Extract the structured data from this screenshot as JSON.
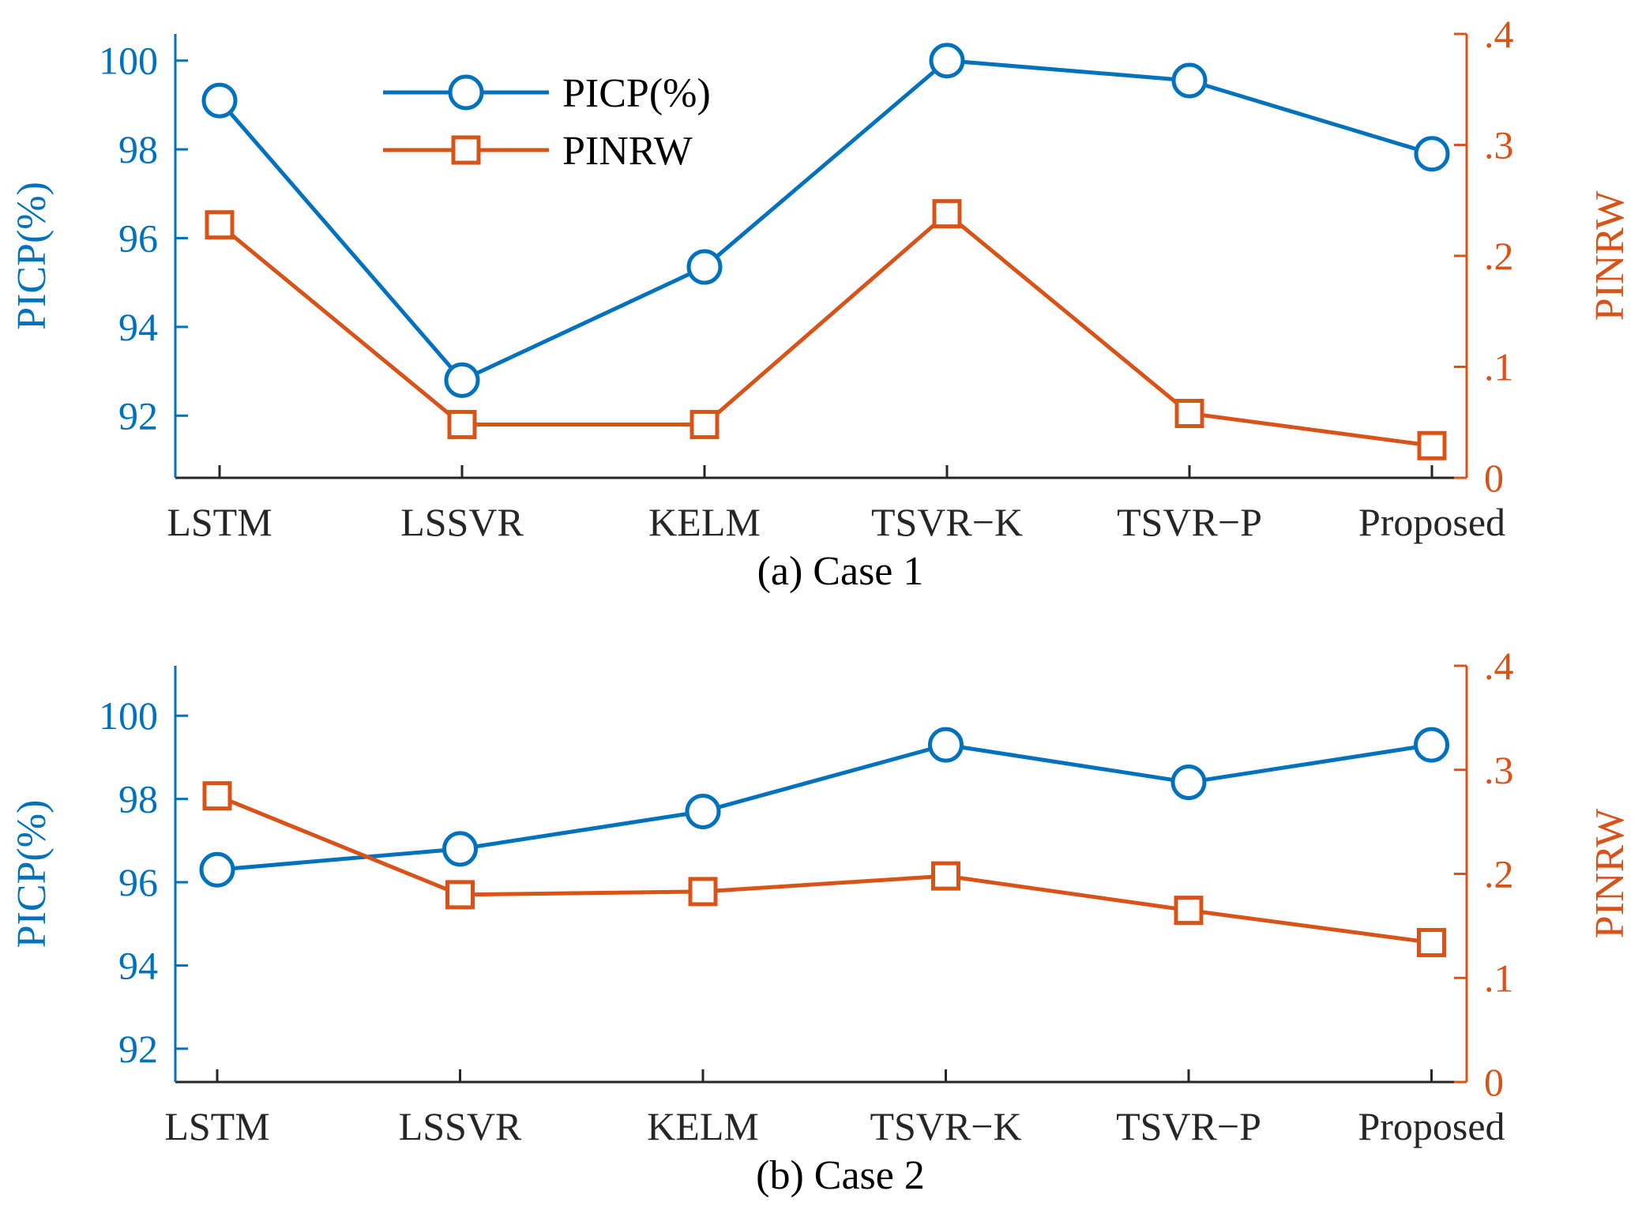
{
  "chart_data": [
    {
      "type": "line",
      "caption": "(a) Case 1",
      "categories": [
        "LSTM",
        "LSSVR",
        "KELM",
        "TSVR−K",
        "TSVR−P",
        "Proposed"
      ],
      "left_axis": {
        "label": "PICP(%)",
        "ylim": [
          90.6,
          100.6
        ],
        "ticks": [
          92,
          94,
          96,
          98,
          100
        ],
        "color": "#0072bd"
      },
      "right_axis": {
        "label": "PINRW",
        "ylim": [
          0,
          0.4
        ],
        "ticks": [
          0,
          0.1,
          0.2,
          0.3,
          0.4
        ],
        "color": "#d95319"
      },
      "series": [
        {
          "name": "PICP(%)",
          "axis": "left",
          "marker": "circle",
          "color": "#0072bd",
          "values": [
            99.1,
            92.8,
            95.35,
            100.0,
            99.55,
            97.9
          ]
        },
        {
          "name": "PINRW",
          "axis": "right",
          "marker": "square",
          "color": "#d95319",
          "values": [
            0.228,
            0.048,
            0.048,
            0.238,
            0.058,
            0.029
          ]
        }
      ],
      "legend": {
        "position": "top-left",
        "items": [
          "PICP(%)",
          "PINRW"
        ]
      }
    },
    {
      "type": "line",
      "caption": "(b) Case 2",
      "categories": [
        "LSTM",
        "LSSVR",
        "KELM",
        "TSVR−K",
        "TSVR−P",
        "Proposed"
      ],
      "left_axis": {
        "label": "PICP(%)",
        "ylim": [
          91.2,
          101.2
        ],
        "ticks": [
          92,
          94,
          96,
          98,
          100
        ],
        "color": "#0072bd"
      },
      "right_axis": {
        "label": "PINRW",
        "ylim": [
          0,
          0.4
        ],
        "ticks": [
          0,
          0.1,
          0.2,
          0.3,
          0.4
        ],
        "color": "#d95319"
      },
      "series": [
        {
          "name": "PICP(%)",
          "axis": "left",
          "marker": "circle",
          "color": "#0072bd",
          "values": [
            96.3,
            96.8,
            97.7,
            99.3,
            98.4,
            99.3
          ]
        },
        {
          "name": "PINRW",
          "axis": "right",
          "marker": "square",
          "color": "#d95319",
          "values": [
            0.275,
            0.18,
            0.183,
            0.198,
            0.165,
            0.134
          ]
        }
      ]
    }
  ]
}
